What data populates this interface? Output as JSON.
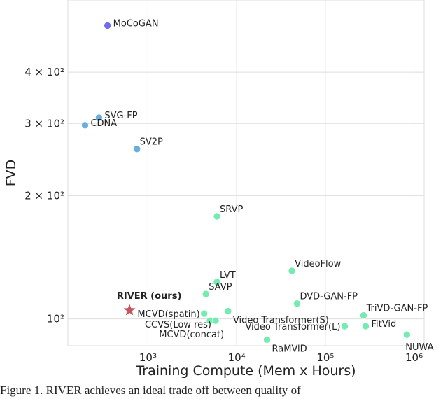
{
  "chart_data": {
    "type": "scatter",
    "title": "",
    "xlabel": "Training Compute (Mem x Hours)",
    "ylabel": "FVD",
    "xscale": "log",
    "yscale": "log",
    "xlim": [
      125,
      1300000
    ],
    "ylim": [
      86,
      600
    ],
    "grid": true,
    "x_ticks": [
      {
        "value": 1000,
        "label": "10³"
      },
      {
        "value": 10000,
        "label": "10⁴"
      },
      {
        "value": 100000,
        "label": "10⁵"
      },
      {
        "value": 1000000,
        "label": "10⁶"
      }
    ],
    "y_ticks": [
      {
        "value": 100,
        "label": "10²"
      },
      {
        "value": 200,
        "label": "2 × 10²"
      },
      {
        "value": 300,
        "label": "3 × 10²"
      },
      {
        "value": 400,
        "label": "4 × 10²"
      }
    ],
    "colors": {
      "purple": "#6f6cf0",
      "blue": "#6aaee0",
      "green": "#74ecb0",
      "ours": "#c9545e",
      "grid": "#dddddd"
    },
    "points": [
      {
        "name": "MoCoGAN",
        "x": 350,
        "y": 520,
        "color": "purple",
        "marker": "circle",
        "anchor": "right"
      },
      {
        "name": "SVG-FP",
        "x": 280,
        "y": 310,
        "color": "blue",
        "marker": "circle",
        "anchor": "right"
      },
      {
        "name": "CDNA",
        "x": 195,
        "y": 297,
        "color": "blue",
        "marker": "circle",
        "anchor": "right"
      },
      {
        "name": "SV2P",
        "x": 750,
        "y": 260,
        "color": "blue",
        "marker": "circle",
        "anchor": "right-up"
      },
      {
        "name": "SRVP",
        "x": 6000,
        "y": 178,
        "color": "green",
        "marker": "circle",
        "anchor": "right-up"
      },
      {
        "name": "VideoFlow",
        "x": 42000,
        "y": 131,
        "color": "green",
        "marker": "circle",
        "anchor": "right-up"
      },
      {
        "name": "LVT",
        "x": 6000,
        "y": 123,
        "color": "green",
        "marker": "circle",
        "anchor": "right-up"
      },
      {
        "name": "SAVP",
        "x": 4500,
        "y": 115,
        "color": "green",
        "marker": "circle",
        "anchor": "right-up"
      },
      {
        "name": "DVD-GAN-FP",
        "x": 48000,
        "y": 109,
        "color": "green",
        "marker": "circle",
        "anchor": "right-up"
      },
      {
        "name": "MCVD(spatin)",
        "x": 4300,
        "y": 103,
        "color": "green",
        "marker": "circle",
        "anchor": "left"
      },
      {
        "name": "Video Transformer(S)",
        "x": 8000,
        "y": 104.5,
        "color": "green",
        "marker": "circle",
        "anchor": "right-down"
      },
      {
        "name": "TriVD-GAN-FP",
        "x": 270000,
        "y": 102,
        "color": "green",
        "marker": "circle",
        "anchor": "right-up"
      },
      {
        "name": "CCVS(Low res)",
        "x": 5000,
        "y": 99,
        "color": "green",
        "marker": "circle",
        "anchor": "left-down"
      },
      {
        "name": "MCVD(concat)",
        "x": 5800,
        "y": 99,
        "color": "green",
        "marker": "circle",
        "anchor": "left-below"
      },
      {
        "name": "Video Transformer(L)",
        "x": 165000,
        "y": 96,
        "color": "green",
        "marker": "circle",
        "anchor": "left"
      },
      {
        "name": "FitVid",
        "x": 285000,
        "y": 96,
        "color": "green",
        "marker": "circle",
        "anchor": "right"
      },
      {
        "name": "NUWA",
        "x": 830000,
        "y": 91.5,
        "color": "green",
        "marker": "circle",
        "anchor": "below"
      },
      {
        "name": "RaMViD",
        "x": 22000,
        "y": 89,
        "color": "green",
        "marker": "circle",
        "anchor": "right-down"
      },
      {
        "name": "RIVER (ours)",
        "x": 620,
        "y": 105,
        "color": "ours",
        "marker": "star",
        "anchor": "above-bold"
      }
    ]
  },
  "caption": "Figure 1. RIVER achieves an ideal trade off between quality of"
}
